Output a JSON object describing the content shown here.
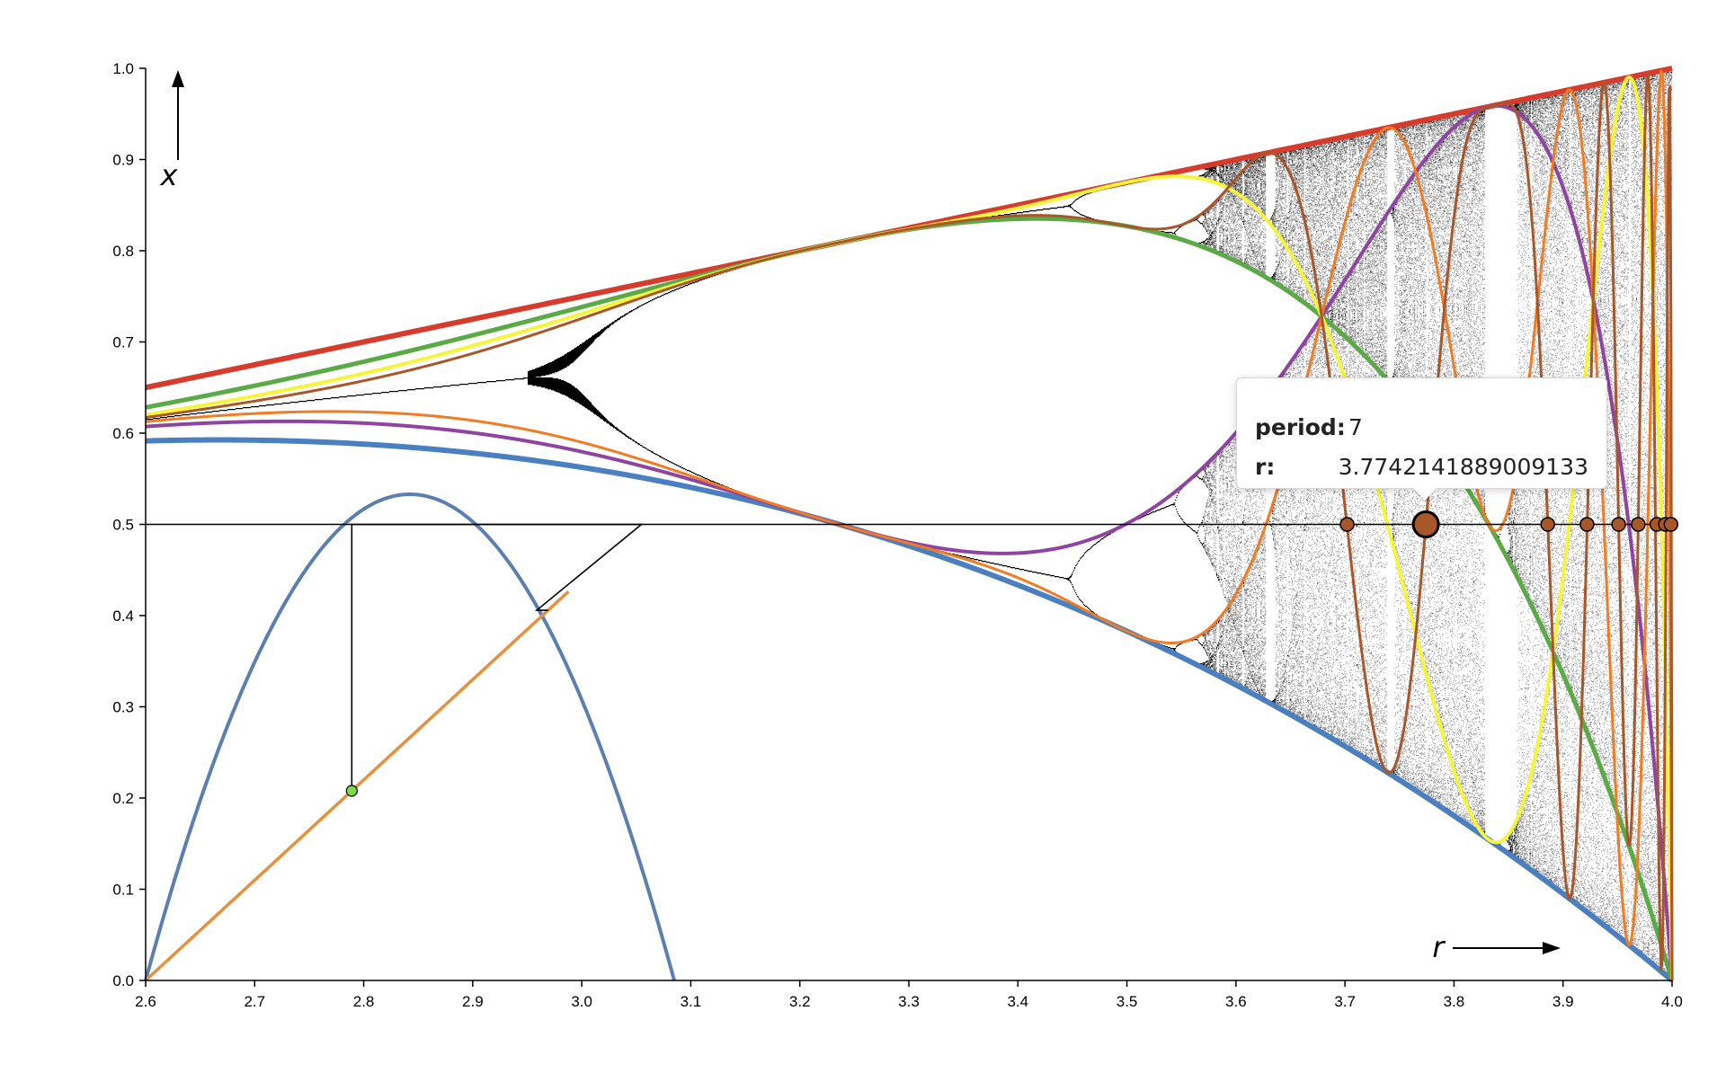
{
  "chart_data": {
    "type": "scatter",
    "title": "",
    "xlabel": "r",
    "ylabel": "x",
    "xlim": [
      2.6,
      4.0
    ],
    "ylim": [
      0.0,
      1.0
    ],
    "x_ticks": [
      "2.6",
      "2.7",
      "2.8",
      "2.9",
      "3.0",
      "3.1",
      "3.2",
      "3.3",
      "3.4",
      "3.5",
      "3.6",
      "3.7",
      "3.8",
      "3.9",
      "4.0"
    ],
    "y_ticks": [
      "0.0",
      "0.1",
      "0.2",
      "0.3",
      "0.4",
      "0.5",
      "0.6",
      "0.7",
      "0.8",
      "0.9",
      "1.0"
    ],
    "reference_line_y": 0.5,
    "bifurcation_diagram": "logistic map x -> r x (1 - x), attractor density shaded in gray",
    "iterate_curves": [
      {
        "iterate": 1,
        "color": "#d63b2b"
      },
      {
        "iterate": 2,
        "color": "#4a7fc1"
      },
      {
        "iterate": 3,
        "color": "#5aaa46"
      },
      {
        "iterate": 4,
        "color": "#8e44a0"
      },
      {
        "iterate": 5,
        "color": "#f5f53a"
      },
      {
        "iterate": 6,
        "color": "#f07c23"
      },
      {
        "iterate": 7,
        "color": "#a8572a"
      }
    ],
    "superstable_points": [
      {
        "r": 3.702,
        "x": 0.5
      },
      {
        "r": 3.7742141889009133,
        "x": 0.5,
        "highlighted": true
      },
      {
        "r": 3.886,
        "x": 0.5
      },
      {
        "r": 3.922,
        "x": 0.5
      },
      {
        "r": 3.951,
        "x": 0.5
      },
      {
        "r": 3.969,
        "x": 0.5
      },
      {
        "r": 3.986,
        "x": 0.5
      },
      {
        "r": 3.994,
        "x": 0.5
      },
      {
        "r": 3.999,
        "x": 0.5
      }
    ],
    "inset": {
      "type": "cobweb",
      "map_curve_color": "#5b7fb0",
      "diagonal_color": "#e8913c",
      "start_point_color": "#7fd84a"
    }
  },
  "tooltip": {
    "period_label": "period:",
    "period_value": "7",
    "r_label": "r:",
    "r_value": "3.7742141889009133"
  }
}
